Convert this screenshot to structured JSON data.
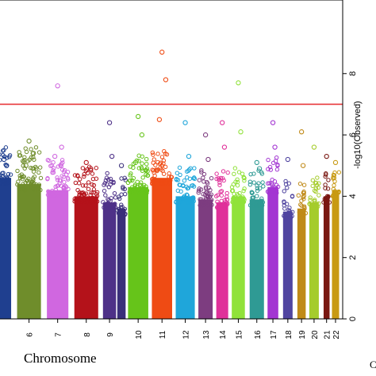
{
  "chart_data": {
    "type": "scatter",
    "subtype": "manhattan",
    "xlabel": "Chromosome",
    "ylabel": "-log10(Observed)",
    "ylim": [
      0,
      10.4
    ],
    "yticks": [
      0,
      2,
      4,
      6,
      8
    ],
    "threshold": 7.0,
    "threshold_color": "#e8383b",
    "grid": false,
    "legend": "none",
    "cut_text": "C",
    "chromosomes": [
      {
        "label": "",
        "start": 0.0,
        "end": 1.2,
        "color": "#1f3f8f",
        "body": 4.6,
        "top": 5.6,
        "hits": [
          5.2,
          5.0
        ]
      },
      {
        "label": "6",
        "start": 1.7,
        "end": 3.7,
        "color": "#6f8d2b",
        "body": 4.4,
        "top": 5.6,
        "hits": [
          5.8,
          5.4,
          5.0
        ]
      },
      {
        "label": "7",
        "start": 4.2,
        "end": 6.0,
        "color": "#d067e0",
        "body": 4.2,
        "top": 5.2,
        "hits": [
          7.6,
          5.6,
          5.3
        ]
      },
      {
        "label": "8",
        "start": 6.5,
        "end": 8.5,
        "color": "#b4121a",
        "body": 4.0,
        "top": 5.0,
        "hits": [
          5.1,
          4.9
        ]
      },
      {
        "label": "9",
        "start": 8.9,
        "end": 10.0,
        "color": "#4e3188",
        "body": 3.8,
        "top": 4.8,
        "hits": [
          6.4,
          5.3
        ]
      },
      {
        "label": "",
        "start": 10.1,
        "end": 10.8,
        "color": "#3a2f7a",
        "body": 3.6,
        "top": 4.6,
        "hits": [
          5.0
        ]
      },
      {
        "label": "10",
        "start": 11.0,
        "end": 12.7,
        "color": "#66c41a",
        "body": 4.3,
        "top": 5.4,
        "hits": [
          6.6,
          6.0,
          5.1
        ]
      },
      {
        "label": "11",
        "start": 13.0,
        "end": 14.7,
        "color": "#ef4b14",
        "body": 4.6,
        "top": 5.6,
        "hits": [
          8.7,
          7.8,
          6.5
        ]
      },
      {
        "label": "12",
        "start": 15.0,
        "end": 16.6,
        "color": "#1fa6da",
        "body": 4.0,
        "top": 5.0,
        "hits": [
          6.4,
          5.3
        ]
      },
      {
        "label": "13",
        "start": 16.9,
        "end": 18.1,
        "color": "#7d3d80",
        "body": 3.9,
        "top": 4.9,
        "hits": [
          6.0,
          5.2
        ]
      },
      {
        "label": "14",
        "start": 18.4,
        "end": 19.4,
        "color": "#e0319a",
        "body": 3.8,
        "top": 4.9,
        "hits": [
          6.4,
          5.6
        ]
      },
      {
        "label": "15",
        "start": 19.7,
        "end": 20.8,
        "color": "#90e23a",
        "body": 4.0,
        "top": 5.0,
        "hits": [
          7.7,
          6.1
        ]
      },
      {
        "label": "16",
        "start": 21.2,
        "end": 22.4,
        "color": "#2f9a94",
        "body": 3.9,
        "top": 4.9,
        "hits": [
          5.1,
          4.9
        ]
      },
      {
        "label": "17",
        "start": 22.7,
        "end": 23.6,
        "color": "#a335d2",
        "body": 4.3,
        "top": 5.3,
        "hits": [
          6.4,
          5.6
        ]
      },
      {
        "label": "18",
        "start": 24.0,
        "end": 24.8,
        "color": "#5045a0",
        "body": 3.5,
        "top": 4.5,
        "hits": [
          5.2
        ]
      },
      {
        "label": "19",
        "start": 25.2,
        "end": 25.9,
        "color": "#c08a18",
        "body": 3.6,
        "top": 4.6,
        "hits": [
          6.1,
          5.0
        ]
      },
      {
        "label": "20",
        "start": 26.2,
        "end": 27.0,
        "color": "#a5cc2c",
        "body": 3.8,
        "top": 4.8,
        "hits": [
          5.6
        ]
      },
      {
        "label": "21",
        "start": 27.4,
        "end": 27.9,
        "color": "#7a1812",
        "body": 4.0,
        "top": 4.9,
        "hits": [
          5.3
        ]
      },
      {
        "label": "22",
        "start": 28.1,
        "end": 28.7,
        "color": "#c89a12",
        "body": 4.2,
        "top": 5.0,
        "hits": [
          5.1
        ]
      }
    ]
  }
}
